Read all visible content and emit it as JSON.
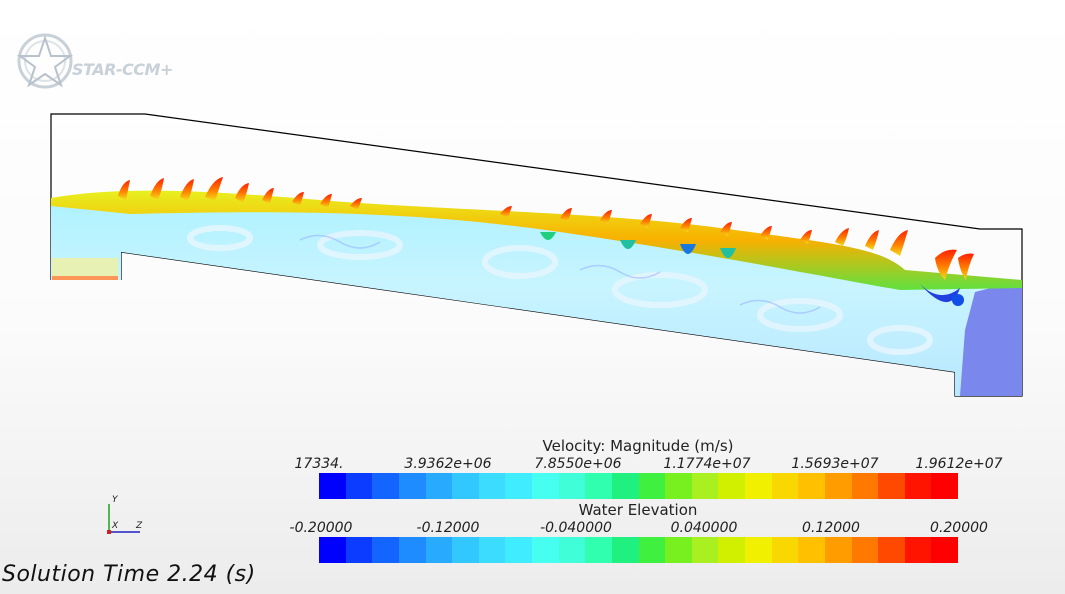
{
  "app": {
    "logo_text": "STAR-CCM+"
  },
  "legends": [
    {
      "title": "Velocity: Magnitude (m/s)",
      "ticks": [
        "17334.",
        "3.9362e+06",
        "7.8550e+06",
        "1.1774e+07",
        "1.5693e+07",
        "1.9612e+07"
      ]
    },
    {
      "title": "Water Elevation",
      "ticks": [
        "-0.20000",
        "-0.12000",
        "-0.040000",
        "0.040000",
        "0.12000",
        "0.20000"
      ]
    }
  ],
  "colormap": [
    "#0000ff",
    "#0c3cff",
    "#1464ff",
    "#1e8cff",
    "#28aaff",
    "#32c8ff",
    "#3cdcff",
    "#40ecff",
    "#46fff0",
    "#40ffd8",
    "#30ffb0",
    "#20f080",
    "#40f040",
    "#78f020",
    "#a8f020",
    "#d0f000",
    "#f0f000",
    "#f8d800",
    "#ffc000",
    "#ff9c00",
    "#ff7800",
    "#ff4800",
    "#ff1400",
    "#ff0000"
  ],
  "axes_triad": {
    "y": "Y",
    "x": "X",
    "z": "Z"
  },
  "solution_time": "Solution Time 2.24 (s)"
}
